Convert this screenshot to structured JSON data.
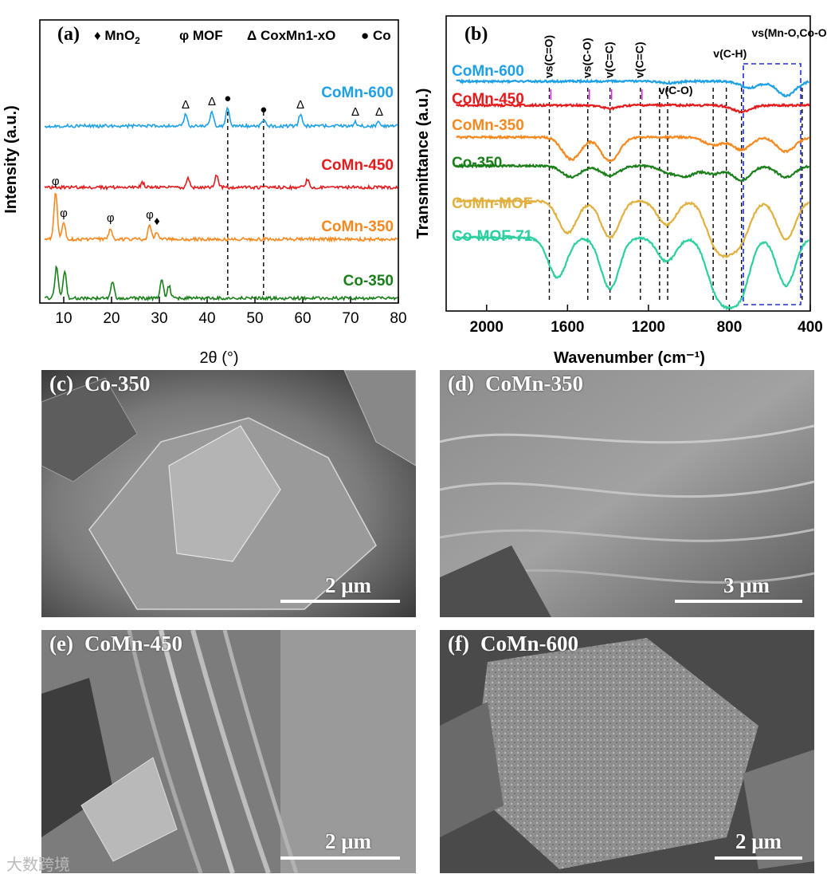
{
  "panel_a": {
    "tag": "(a)",
    "legend": [
      {
        "symbol": "♦",
        "label": "MnO",
        "sub": "2"
      },
      {
        "symbol": "φ",
        "label": "MOF",
        "sub": ""
      },
      {
        "symbol": "Δ",
        "label": "CoxMn1-xO",
        "sub": ""
      },
      {
        "symbol": "●",
        "label": "Co",
        "sub": ""
      }
    ],
    "xlabel": "2θ (°)",
    "ylabel": "Intensity (a.u.)",
    "xticks": [
      "10",
      "20",
      "30",
      "40",
      "50",
      "60",
      "70",
      "80"
    ]
  },
  "panel_b": {
    "tag": "(b)",
    "xlabel": "Wavenumber (cm⁻¹)",
    "ylabel": "Transmittance (a.u.)",
    "xticks": [
      "2000",
      "1600",
      "1200",
      "800",
      "400"
    ],
    "annotations": [
      "vs(C=O)",
      "vs(C-O)",
      "v(C=C)",
      "v(C=C)",
      "v(C-O)",
      "v(C-H)",
      "vs(Mn-O,Co-O)"
    ]
  },
  "chart_data": [
    {
      "type": "line",
      "title": "(a)",
      "xlabel": "2θ (°)",
      "ylabel": "Intensity (a.u.)",
      "xlim": [
        5,
        80
      ],
      "series": [
        {
          "name": "CoMn-600",
          "color": "#1ea0e6",
          "peaks": [
            35.5,
            41.0,
            44.3,
            51.8,
            59.5,
            71.0,
            76.0
          ],
          "markers": [
            "Δ",
            "Δ",
            "●",
            "●",
            "Δ",
            "Δ",
            "Δ"
          ]
        },
        {
          "name": "CoMn-450",
          "color": "#e41a1c",
          "peaks": [
            26.5,
            36.0,
            42.0,
            61.0
          ]
        },
        {
          "name": "CoMn-350",
          "color": "#f5891f",
          "peaks": [
            8.3,
            10.0,
            19.8,
            28.0,
            29.5
          ],
          "markers": [
            "φ",
            "φ",
            "φ",
            "φ",
            "♦"
          ]
        },
        {
          "name": "Co-350",
          "color": "#1a7f1a",
          "peaks": [
            8.5,
            10.2,
            20.2,
            30.5,
            32.0
          ]
        }
      ],
      "reference_lines": [
        44.3,
        51.8
      ]
    },
    {
      "type": "line",
      "title": "(b)",
      "xlabel": "Wavenumber (cm⁻¹)",
      "ylabel": "Transmittance (a.u.)",
      "xlim": [
        2200,
        400
      ],
      "series": [
        {
          "name": "CoMn-600",
          "color": "#1ea0e6"
        },
        {
          "name": "CoMn-450",
          "color": "#e41a1c"
        },
        {
          "name": "CoMn-350",
          "color": "#f5891f"
        },
        {
          "name": "Co-350",
          "color": "#1a7f1a"
        },
        {
          "name": "CoMn-MOF",
          "color": "#e0b040"
        },
        {
          "name": "Co-MOF-71",
          "color": "#2ccfa0"
        }
      ],
      "reference_lines": [
        1690,
        1500,
        1390,
        1240,
        1145,
        1105,
        880,
        815,
        740,
        440
      ]
    }
  ],
  "sem": [
    {
      "tag": "(c)",
      "label": "Co-350",
      "scale": "2 μm"
    },
    {
      "tag": "(d)",
      "label": "CoMn-350",
      "scale": "3 μm"
    },
    {
      "tag": "(e)",
      "label": "CoMn-450",
      "scale": "2 μm"
    },
    {
      "tag": "(f)",
      "label": "CoMn-600",
      "scale": "2 μm"
    }
  ],
  "watermark": "大数跨境"
}
